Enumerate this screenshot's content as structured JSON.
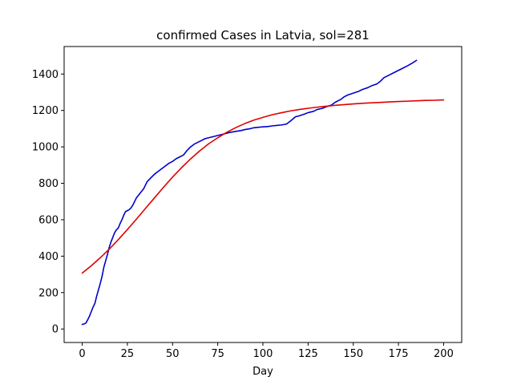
{
  "chart_data": {
    "type": "line",
    "title": "confirmed Cases in Latvia, sol=281",
    "xlabel": "Day",
    "ylabel": "",
    "xlim": [
      -10.0,
      210.0
    ],
    "ylim": [
      -74.0,
      1551.0
    ],
    "x_ticks": [
      0,
      25,
      50,
      75,
      100,
      125,
      150,
      175,
      200
    ],
    "x_tick_labels": [
      "0",
      "25",
      "50",
      "75",
      "100",
      "125",
      "150",
      "175",
      "200"
    ],
    "y_ticks": [
      0,
      200,
      400,
      600,
      800,
      1000,
      1200,
      1400
    ],
    "y_tick_labels": [
      "0",
      "200",
      "400",
      "600",
      "800",
      "1000",
      "1200",
      "1400"
    ],
    "grid": false,
    "legend": "none",
    "series": [
      {
        "color": "#0000cc",
        "x": [
          0,
          1,
          2,
          3,
          4,
          5,
          6,
          7,
          8,
          9,
          10,
          11,
          12,
          13,
          14,
          15,
          16,
          17,
          18,
          19,
          20,
          21,
          22,
          23,
          24,
          25,
          26,
          27,
          28,
          29,
          30,
          32,
          34,
          35,
          36,
          38,
          40,
          42,
          44,
          46,
          48,
          50,
          52,
          54,
          56,
          58,
          60,
          62,
          64,
          66,
          68,
          70,
          72,
          74,
          76,
          78,
          80,
          82,
          85,
          88,
          90,
          93,
          95,
          98,
          100,
          103,
          105,
          108,
          110,
          113,
          115,
          118,
          120,
          123,
          125,
          128,
          130,
          133,
          135,
          138,
          140,
          143,
          145,
          147,
          150,
          153,
          155,
          158,
          160,
          163,
          165,
          167,
          170,
          173,
          175,
          177,
          180,
          183,
          185
        ],
        "values": [
          25,
          28,
          32,
          50,
          70,
          95,
          120,
          140,
          180,
          215,
          250,
          290,
          340,
          375,
          410,
          450,
          480,
          505,
          530,
          545,
          555,
          580,
          600,
          625,
          645,
          650,
          655,
          665,
          680,
          700,
          720,
          745,
          770,
          790,
          810,
          830,
          850,
          865,
          880,
          895,
          910,
          920,
          935,
          945,
          955,
          980,
          1000,
          1015,
          1025,
          1035,
          1045,
          1050,
          1055,
          1060,
          1065,
          1070,
          1075,
          1080,
          1085,
          1090,
          1095,
          1100,
          1105,
          1108,
          1110,
          1112,
          1115,
          1118,
          1120,
          1125,
          1140,
          1165,
          1170,
          1180,
          1188,
          1195,
          1205,
          1212,
          1220,
          1230,
          1245,
          1260,
          1275,
          1285,
          1295,
          1305,
          1315,
          1325,
          1335,
          1345,
          1360,
          1380,
          1395,
          1410,
          1420,
          1430,
          1445,
          1462,
          1475
        ]
      },
      {
        "color": "#e00000",
        "x": [
          0,
          5,
          10,
          15,
          20,
          25,
          30,
          35,
          40,
          45,
          50,
          55,
          60,
          65,
          70,
          75,
          80,
          85,
          90,
          95,
          100,
          105,
          110,
          115,
          120,
          125,
          130,
          135,
          140,
          145,
          150,
          155,
          160,
          165,
          170,
          175,
          180,
          185,
          190,
          195,
          200
        ],
        "values": [
          307,
          347,
          391,
          439,
          491,
          546,
          603,
          662,
          720,
          778,
          834,
          886,
          934,
          978,
          1017,
          1050,
          1080,
          1106,
          1128,
          1147,
          1162,
          1176,
          1187,
          1197,
          1205,
          1212,
          1218,
          1223,
          1228,
          1232,
          1236,
          1239,
          1242,
          1244,
          1247,
          1249,
          1251,
          1253,
          1255,
          1256,
          1258
        ]
      }
    ]
  }
}
